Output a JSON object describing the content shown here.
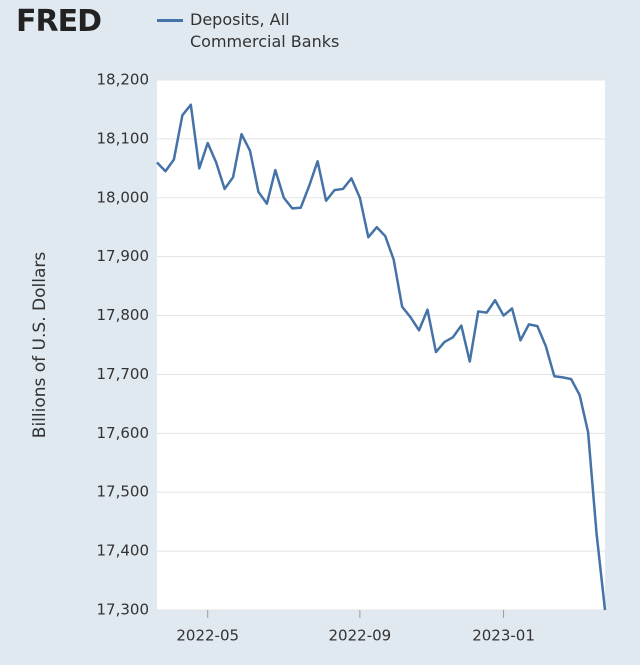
{
  "logo": "FRED",
  "chart_data": {
    "type": "line",
    "y_label": "Billions of U.S. Dollars",
    "categories": [
      null,
      null,
      null,
      null,
      null,
      null,
      "2022-05",
      null,
      null,
      null,
      null,
      null,
      null,
      null,
      null,
      null,
      null,
      null,
      null,
      null,
      null,
      null,
      null,
      null,
      "2022-09",
      null,
      null,
      null,
      null,
      null,
      null,
      null,
      null,
      null,
      null,
      null,
      null,
      null,
      null,
      null,
      null,
      "2023-01",
      null,
      null,
      null,
      null,
      null,
      null,
      null,
      null,
      null,
      null,
      null,
      null
    ],
    "series": [
      {
        "name": "Deposits, All Commercial Banks",
        "color": "#4572a7",
        "values": [
          18060,
          18045,
          18065,
          18140,
          18158,
          18050,
          18093,
          18060,
          18015,
          18035,
          18108,
          18080,
          18010,
          17990,
          18047,
          18000,
          17982,
          17983,
          18020,
          18062,
          17995,
          18013,
          18015,
          18033,
          18000,
          17933,
          17950,
          17935,
          17895,
          17815,
          17797,
          17775,
          17810,
          17738,
          17755,
          17763,
          17783,
          17722,
          17807,
          17805,
          17826,
          17800,
          17812,
          17758,
          17785,
          17782,
          17748,
          17697,
          17695,
          17692,
          17665,
          17602,
          17430,
          17300
        ]
      }
    ],
    "ylim": [
      17300,
      18200
    ],
    "yticks": [
      {
        "value": 17300,
        "label": "17,300"
      },
      {
        "value": 17400,
        "label": "17,400"
      },
      {
        "value": 17500,
        "label": "17,500"
      },
      {
        "value": 17600,
        "label": "17,600"
      },
      {
        "value": 17700,
        "label": "17,700"
      },
      {
        "value": 17800,
        "label": "17,800"
      },
      {
        "value": 17900,
        "label": "17,900"
      },
      {
        "value": 18000,
        "label": "18,000"
      },
      {
        "value": 18100,
        "label": "18,100"
      },
      {
        "value": 18200,
        "label": "18,200"
      }
    ],
    "grid": true
  }
}
